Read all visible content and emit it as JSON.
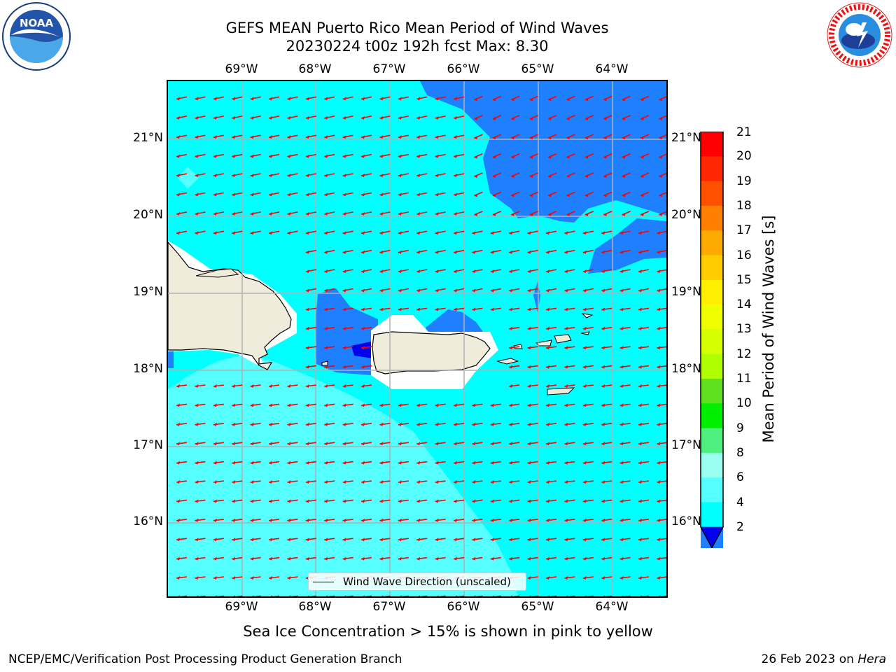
{
  "header": {
    "title_line1": "GEFS MEAN Puerto Rico Mean Period of Wind Waves",
    "title_line2": "20230224 t00z 192h fcst   Max: 8.30"
  },
  "map": {
    "lon_labels": [
      "69°W",
      "68°W",
      "67°W",
      "66°W",
      "65°W",
      "64°W"
    ],
    "lat_labels": [
      "21°N",
      "20°N",
      "19°N",
      "18°N",
      "17°N",
      "16°N"
    ],
    "legend_label": "Wind Wave Direction (unscaled)",
    "colors": {
      "ocean_4_6": "#00ffff",
      "ocean_6_8": "#55ffff",
      "ocean_2_4": "#1e80ff",
      "ocean_lt2": "#0000ee",
      "land": "#efecdc",
      "arrow": "#ff0000",
      "grid": "#b0b0b0"
    }
  },
  "colorbar": {
    "label": "Mean Period of Wind Waves [s]",
    "ticks": [
      "21",
      "20",
      "19",
      "18",
      "17",
      "16",
      "15",
      "14",
      "13",
      "12",
      "11",
      "10",
      "9",
      "8",
      "6",
      "4",
      "2"
    ],
    "colors": [
      "#ff0000",
      "#ff2600",
      "#ff5000",
      "#ff8000",
      "#ffaa00",
      "#ffcc00",
      "#ffee00",
      "#f0ff00",
      "#d4ff00",
      "#b0ff00",
      "#60e020",
      "#00ee00",
      "#50f080",
      "#9afff0",
      "#55ffff",
      "#00ffff",
      "#1e80ff"
    ],
    "under_color": "#0000ee"
  },
  "notes": {
    "sea_ice": "Sea Ice Concentration > 15% is shown in pink to yellow"
  },
  "footer": {
    "left": "NCEP/EMC/Verification Post Processing Product Generation Branch",
    "date": "26 Feb 2023 on ",
    "machine": "Hera"
  },
  "logos": {
    "noaa_text": "NOAA",
    "nws_text": "NATIONAL WEATHER SERVICE"
  }
}
